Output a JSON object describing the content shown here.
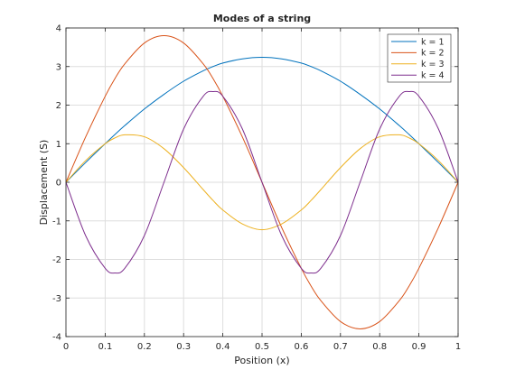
{
  "chart_data": {
    "type": "line",
    "title": "Modes of a string",
    "xlabel": "Position (x)",
    "ylabel": "Displacement (S)",
    "xlim": [
      0,
      1
    ],
    "ylim": [
      -4,
      4
    ],
    "xticks": [
      0,
      0.1,
      0.2,
      0.3,
      0.4,
      0.5,
      0.6,
      0.7,
      0.8,
      0.9,
      1
    ],
    "yticks": [
      -4,
      -3,
      -2,
      -1,
      0,
      1,
      2,
      3,
      4
    ],
    "xtick_labels": [
      "0",
      "0.1",
      "0.2",
      "0.3",
      "0.4",
      "0.5",
      "0.6",
      "0.7",
      "0.8",
      "0.9",
      "1"
    ],
    "ytick_labels": [
      "-4",
      "-3",
      "-2",
      "-1",
      "0",
      "1",
      "2",
      "3",
      "4"
    ],
    "grid": true,
    "legend_position": "top-right",
    "x": [
      0,
      0.05,
      0.1,
      0.125,
      0.15,
      0.2,
      0.25,
      0.3,
      0.35,
      0.375,
      0.4,
      0.45,
      0.5,
      0.55,
      0.6,
      0.625,
      0.65,
      0.7,
      0.75,
      0.8,
      0.85,
      0.875,
      0.9,
      0.95,
      1
    ],
    "series": [
      {
        "name": "k = 1",
        "color": "#0072bd",
        "values": [
          0,
          0.51,
          1.0,
          1.24,
          1.47,
          1.9,
          2.28,
          2.62,
          2.89,
          3.0,
          3.09,
          3.2,
          3.24,
          3.2,
          3.09,
          3.0,
          2.89,
          2.62,
          2.28,
          1.9,
          1.47,
          1.24,
          1.0,
          0.51,
          0
        ]
      },
      {
        "name": "k = 2",
        "color": "#d95319",
        "values": [
          0,
          1.17,
          2.23,
          2.69,
          3.07,
          3.61,
          3.8,
          3.61,
          3.07,
          2.69,
          2.23,
          1.17,
          0,
          -1.17,
          -2.23,
          -2.69,
          -3.07,
          -3.61,
          -3.8,
          -3.61,
          -3.07,
          -2.69,
          -2.23,
          -1.17,
          0
        ]
      },
      {
        "name": "k = 3",
        "color": "#edb120",
        "values": [
          0,
          0.56,
          1.0,
          1.15,
          1.23,
          1.18,
          0.87,
          0.38,
          -0.19,
          -0.47,
          -0.72,
          -1.08,
          -1.23,
          -1.08,
          -0.72,
          -0.47,
          -0.19,
          0.38,
          0.87,
          1.18,
          1.23,
          1.15,
          1.0,
          0.56,
          0
        ]
      },
      {
        "name": "k = 4",
        "color": "#7e2f8e",
        "values": [
          0,
          -1.38,
          -2.23,
          -2.35,
          -2.23,
          -1.38,
          0,
          1.38,
          2.23,
          2.35,
          2.23,
          1.38,
          0,
          -1.38,
          -2.23,
          -2.35,
          -2.23,
          -1.38,
          0,
          1.38,
          2.23,
          2.35,
          2.23,
          1.38,
          0
        ]
      }
    ]
  }
}
